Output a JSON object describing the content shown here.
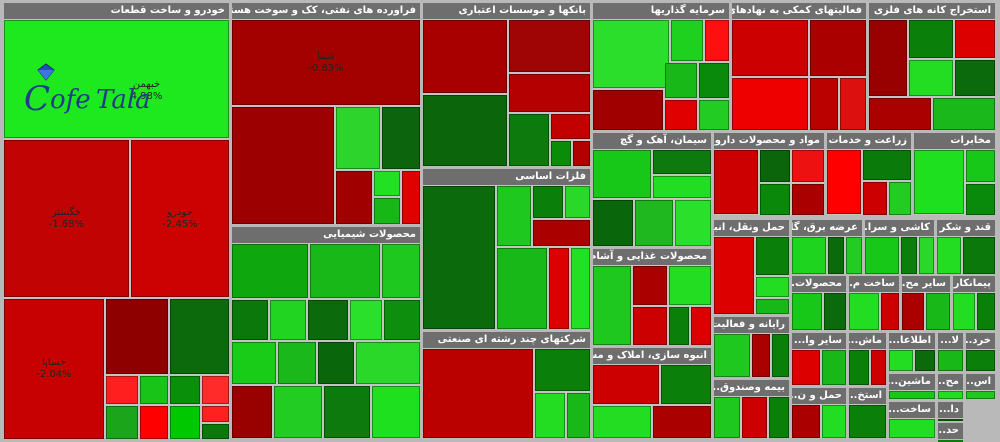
{
  "chart_data": {
    "type": "treemap",
    "legend": "none",
    "colors": {
      "strong_up": "#00ff00",
      "up": "#00cc00",
      "mild_up": "#009900",
      "flat_up": "#006600",
      "flat_down": "#990000",
      "down": "#cc0000",
      "strong_down": "#ff0000",
      "background": "#b9b9b9",
      "header": "#6e6e6e"
    },
    "sectors": [
      {
        "title": "خودرو و ساخت قطعات",
        "tiles": [
          {
            "label": "خبهمن",
            "value": "4.98%",
            "color": "#1ee81e"
          },
          {
            "label": "خگستر",
            "value": "-1.68%",
            "color": "#c10303"
          },
          {
            "label": "خودرو",
            "value": "-2.45%",
            "color": "#cc0202"
          },
          {
            "label": "خساپا",
            "value": "-2.04%",
            "color": "#c70101"
          },
          {
            "label": "",
            "value": "",
            "color": "#8e0000"
          },
          {
            "label": "",
            "value": "",
            "color": "#0c6a0c"
          },
          {
            "label": "",
            "value": "",
            "color": "#ff1f1f"
          },
          {
            "label": "",
            "value": "",
            "color": "#18c418"
          },
          {
            "label": "",
            "value": "",
            "color": "#0a8f0a"
          },
          {
            "label": "",
            "value": "",
            "color": "#ff2a2a"
          },
          {
            "label": "",
            "value": "",
            "color": "#1aa51a"
          },
          {
            "label": "",
            "value": "",
            "color": "#ff0000"
          },
          {
            "label": "",
            "value": "",
            "color": "#00c800"
          },
          {
            "label": "",
            "value": "",
            "color": "#ff2020"
          },
          {
            "label": "",
            "value": "",
            "color": "#0a780a"
          }
        ]
      },
      {
        "title": "فراورده های نفتی، کک و سوخت هسته ای",
        "tiles": [
          {
            "label": "شپنا",
            "value": "-0.83%",
            "color": "#a30000"
          },
          {
            "label": "",
            "value": "",
            "color": "#9c0000"
          },
          {
            "label": "",
            "value": "",
            "color": "#2cd42c"
          },
          {
            "label": "",
            "value": "",
            "color": "#0c640c"
          },
          {
            "label": "",
            "value": "",
            "color": "#a00000"
          },
          {
            "label": "",
            "value": "",
            "color": "#22e022"
          },
          {
            "label": "",
            "value": "",
            "color": "#18b718"
          },
          {
            "label": "",
            "value": "",
            "color": "#e00000"
          }
        ]
      },
      {
        "title": "بانکها و موسسات اعتباری",
        "tiles": [
          {
            "label": "",
            "value": "",
            "color": "#a80000"
          },
          {
            "label": "",
            "value": "",
            "color": "#a00505"
          },
          {
            "label": "",
            "value": "",
            "color": "#b40000"
          },
          {
            "label": "",
            "value": "",
            "color": "#0b660b"
          },
          {
            "label": "",
            "value": "",
            "color": "#0d7a0d"
          },
          {
            "label": "",
            "value": "",
            "color": "#c20000"
          },
          {
            "label": "",
            "value": "",
            "color": "#098d09"
          },
          {
            "label": "",
            "value": "",
            "color": "#b00000"
          }
        ]
      },
      {
        "title": "سرمایه گذاریها",
        "tiles": [
          {
            "label": "",
            "value": "",
            "color": "#2bde2b"
          },
          {
            "label": "",
            "value": "",
            "color": "#1ed11e"
          },
          {
            "label": "",
            "value": "",
            "color": "#ff1010"
          },
          {
            "label": "",
            "value": "",
            "color": "#a00000"
          },
          {
            "label": "",
            "value": "",
            "color": "#18b818"
          },
          {
            "label": "",
            "value": "",
            "color": "#0a8a0a"
          },
          {
            "label": "",
            "value": "",
            "color": "#e00000"
          },
          {
            "label": "",
            "value": "",
            "color": "#22cc22"
          }
        ]
      },
      {
        "title": "فعالیتهای کمکی به نهادهای ...",
        "tiles": [
          {
            "label": "",
            "value": "",
            "color": "#cc0000"
          },
          {
            "label": "",
            "value": "",
            "color": "#aa0000"
          },
          {
            "label": "",
            "value": "",
            "color": "#ee0000"
          },
          {
            "label": "",
            "value": "",
            "color": "#bb0000"
          },
          {
            "label": "",
            "value": "",
            "color": "#dd1010"
          }
        ]
      },
      {
        "title": "استخراج کانه های فلزی",
        "tiles": [
          {
            "label": "",
            "value": "",
            "color": "#990000"
          },
          {
            "label": "",
            "value": "",
            "color": "#0a800a"
          },
          {
            "label": "",
            "value": "",
            "color": "#dd0000"
          },
          {
            "label": "",
            "value": "",
            "color": "#22dd22"
          },
          {
            "label": "",
            "value": "",
            "color": "#0b6a0b"
          },
          {
            "label": "",
            "value": "",
            "color": "#aa0000"
          },
          {
            "label": "",
            "value": "",
            "color": "#1ab81a"
          }
        ]
      },
      {
        "title": "سیمان، آهک و گچ",
        "tiles": [
          {
            "label": "",
            "value": "",
            "color": "#18c818"
          },
          {
            "label": "",
            "value": "",
            "color": "#0c7a0c"
          },
          {
            "label": "",
            "value": "",
            "color": "#22dd22"
          },
          {
            "label": "",
            "value": "",
            "color": "#0a660a"
          },
          {
            "label": "",
            "value": "",
            "color": "#1fb81f"
          },
          {
            "label": "",
            "value": "",
            "color": "#2ae02a"
          }
        ]
      },
      {
        "title": "مواد و محصولات دارویی",
        "tiles": [
          {
            "label": "",
            "value": "",
            "color": "#cc0000"
          },
          {
            "label": "",
            "value": "",
            "color": "#0b660b"
          },
          {
            "label": "",
            "value": "",
            "color": "#ee1111"
          },
          {
            "label": "",
            "value": "",
            "color": "#0a880a"
          },
          {
            "label": "",
            "value": "",
            "color": "#aa0000"
          }
        ]
      },
      {
        "title": "زراعت و خدمات وا...",
        "tiles": [
          {
            "label": "",
            "value": "",
            "color": "#ff0000"
          },
          {
            "label": "",
            "value": "",
            "color": "#0a7a0a"
          },
          {
            "label": "",
            "value": "",
            "color": "#cc0000"
          },
          {
            "label": "",
            "value": "",
            "color": "#22cc22"
          }
        ]
      },
      {
        "title": "مخابرات",
        "tiles": [
          {
            "label": "",
            "value": "",
            "color": "#1ee01e"
          },
          {
            "label": "",
            "value": "",
            "color": "#18c818"
          },
          {
            "label": "",
            "value": "",
            "color": "#0a8a0a"
          }
        ]
      },
      {
        "title": "فلزات اساسی",
        "tiles": [
          {
            "label": "",
            "value": "",
            "color": "#0b6a0b"
          },
          {
            "label": "",
            "value": "",
            "color": "#1ec81e"
          },
          {
            "label": "",
            "value": "",
            "color": "#0a800a"
          },
          {
            "label": "",
            "value": "",
            "color": "#2ad82a"
          },
          {
            "label": "",
            "value": "",
            "color": "#aa0000"
          },
          {
            "label": "",
            "value": "",
            "color": "#18b818"
          },
          {
            "label": "",
            "value": "",
            "color": "#dd0000"
          },
          {
            "label": "",
            "value": "",
            "color": "#22e022"
          }
        ]
      },
      {
        "title": "محصولات شیمیایی",
        "tiles": [
          {
            "label": "",
            "value": "",
            "color": "#0ea80e"
          },
          {
            "label": "",
            "value": "",
            "color": "#18b818"
          },
          {
            "label": "",
            "value": "",
            "color": "#1ec81e"
          },
          {
            "label": "",
            "value": "",
            "color": "#0a780a"
          },
          {
            "label": "",
            "value": "",
            "color": "#22d422"
          },
          {
            "label": "",
            "value": "",
            "color": "#0b6a0b"
          },
          {
            "label": "",
            "value": "",
            "color": "#2ae02a"
          },
          {
            "label": "",
            "value": "",
            "color": "#0d8f0d"
          },
          {
            "label": "",
            "value": "",
            "color": "#18cc18"
          },
          {
            "label": "",
            "value": "",
            "color": "#1ab81a"
          },
          {
            "label": "",
            "value": "",
            "color": "#0a660a"
          },
          {
            "label": "",
            "value": "",
            "color": "#2ad82a"
          },
          {
            "label": "",
            "value": "",
            "color": "#990000"
          },
          {
            "label": "",
            "value": "",
            "color": "#22cc22"
          },
          {
            "label": "",
            "value": "",
            "color": "#0c7a0c"
          },
          {
            "label": "",
            "value": "",
            "color": "#1ee01e"
          }
        ]
      },
      {
        "title": "محصولات غذایی و آشام...",
        "tiles": [
          {
            "label": "",
            "value": "",
            "color": "#1ec81e"
          },
          {
            "label": "",
            "value": "",
            "color": "#aa0000"
          },
          {
            "label": "",
            "value": "",
            "color": "#22dd22"
          },
          {
            "label": "",
            "value": "",
            "color": "#cc0000"
          },
          {
            "label": "",
            "value": "",
            "color": "#0a800a"
          },
          {
            "label": "",
            "value": "",
            "color": "#dd0000"
          }
        ]
      },
      {
        "title": "حمل ونقل، انبا...",
        "tiles": [
          {
            "label": "",
            "value": "",
            "color": "#dd0000"
          },
          {
            "label": "",
            "value": "",
            "color": "#0a800a"
          },
          {
            "label": "",
            "value": "",
            "color": "#22dd22"
          },
          {
            "label": "",
            "value": "",
            "color": "#18b818"
          }
        ]
      },
      {
        "title": "عرضه برق، گا...",
        "tiles": [
          {
            "label": "",
            "value": "",
            "color": "#1ed41e"
          },
          {
            "label": "",
            "value": "",
            "color": "#0b6a0b"
          },
          {
            "label": "",
            "value": "",
            "color": "#22cc22"
          }
        ]
      },
      {
        "title": "کاشی و سرا...",
        "tiles": [
          {
            "label": "",
            "value": "",
            "color": "#18c818"
          },
          {
            "label": "",
            "value": "",
            "color": "#0a800a"
          },
          {
            "label": "",
            "value": "",
            "color": "#2ad82a"
          }
        ]
      },
      {
        "title": "قند و شکر",
        "tiles": [
          {
            "label": "",
            "value": "",
            "color": "#22dd22"
          },
          {
            "label": "",
            "value": "",
            "color": "#0a780a"
          }
        ]
      },
      {
        "title": "رایانه و فعالیت...",
        "tiles": [
          {
            "label": "",
            "value": "",
            "color": "#1ec81e"
          },
          {
            "label": "",
            "value": "",
            "color": "#aa0000"
          },
          {
            "label": "",
            "value": "",
            "color": "#0a800a"
          }
        ]
      },
      {
        "title": "محصولات...",
        "tiles": [
          {
            "label": "",
            "value": "",
            "color": "#18c818"
          },
          {
            "label": "",
            "value": "",
            "color": "#0b6a0b"
          }
        ]
      },
      {
        "title": "ساخت م...",
        "tiles": [
          {
            "label": "",
            "value": "",
            "color": "#22dd22"
          },
          {
            "label": "",
            "value": "",
            "color": "#cc0000"
          }
        ]
      },
      {
        "title": "سایر مح...",
        "tiles": [
          {
            "label": "",
            "value": "",
            "color": "#aa0000"
          },
          {
            "label": "",
            "value": "",
            "color": "#18b818"
          }
        ]
      },
      {
        "title": "پیمانکار...",
        "tiles": [
          {
            "label": "",
            "value": "",
            "color": "#22dd22"
          },
          {
            "label": "",
            "value": "",
            "color": "#0a800a"
          }
        ]
      },
      {
        "title": "شرکتهای چند رشته ای صنعتی",
        "tiles": [
          {
            "label": "",
            "value": "",
            "color": "#bb0000"
          },
          {
            "label": "",
            "value": "",
            "color": "#0a800a"
          },
          {
            "label": "",
            "value": "",
            "color": "#22dd22"
          },
          {
            "label": "",
            "value": "",
            "color": "#18b818"
          }
        ]
      },
      {
        "title": "انبوه سازی، املاک و مس...",
        "tiles": [
          {
            "label": "",
            "value": "",
            "color": "#cc0000"
          },
          {
            "label": "",
            "value": "",
            "color": "#0a800a"
          },
          {
            "label": "",
            "value": "",
            "color": "#22dd22"
          },
          {
            "label": "",
            "value": "",
            "color": "#aa0000"
          }
        ]
      },
      {
        "title": "بیمه وصندوق...",
        "tiles": [
          {
            "label": "",
            "value": "",
            "color": "#1ec81e"
          },
          {
            "label": "",
            "value": "",
            "color": "#cc0000"
          },
          {
            "label": "",
            "value": "",
            "color": "#0a800a"
          }
        ]
      },
      {
        "title": "سایر وا...",
        "tiles": [
          {
            "label": "",
            "value": "",
            "color": "#dd0000"
          },
          {
            "label": "",
            "value": "",
            "color": "#18b818"
          }
        ]
      },
      {
        "title": "حمل و ن...",
        "tiles": [
          {
            "label": "",
            "value": "",
            "color": "#aa0000"
          },
          {
            "label": "",
            "value": "",
            "color": "#22dd22"
          }
        ]
      },
      {
        "title": "ماش...",
        "tiles": [
          {
            "label": "",
            "value": "",
            "color": "#0a800a"
          },
          {
            "label": "",
            "value": "",
            "color": "#cc0000"
          }
        ]
      },
      {
        "title": "اطلاعا...",
        "tiles": [
          {
            "label": "",
            "value": "",
            "color": "#22dd22"
          },
          {
            "label": "",
            "value": "",
            "color": "#0b6a0b"
          }
        ]
      },
      {
        "title": "ماشین...",
        "tiles": [
          {
            "label": "",
            "value": "",
            "color": "#18c818"
          }
        ]
      },
      {
        "title": "استخ...",
        "tiles": [
          {
            "label": "",
            "value": "",
            "color": "#0a800a"
          }
        ]
      },
      {
        "title": "ساخت...",
        "tiles": [
          {
            "label": "",
            "value": "",
            "color": "#22dd22"
          }
        ]
      },
      {
        "title": "لا...",
        "tiles": [
          {
            "label": "",
            "value": "",
            "color": "#18b818"
          }
        ]
      },
      {
        "title": "خرد...",
        "tiles": [
          {
            "label": "",
            "value": "",
            "color": "#0a800a"
          }
        ]
      },
      {
        "title": "مح...",
        "tiles": [
          {
            "label": "",
            "value": "",
            "color": "#22dd22"
          }
        ]
      },
      {
        "title": "اس...",
        "tiles": [
          {
            "label": "",
            "value": "",
            "color": "#1ec81e"
          }
        ]
      },
      {
        "title": "دا...",
        "tiles": [
          {
            "label": "",
            "value": "",
            "color": "#0a800a"
          }
        ]
      },
      {
        "title": "حد...",
        "tiles": [
          {
            "label": "",
            "value": "",
            "color": "#18b818"
          }
        ]
      }
    ]
  }
}
